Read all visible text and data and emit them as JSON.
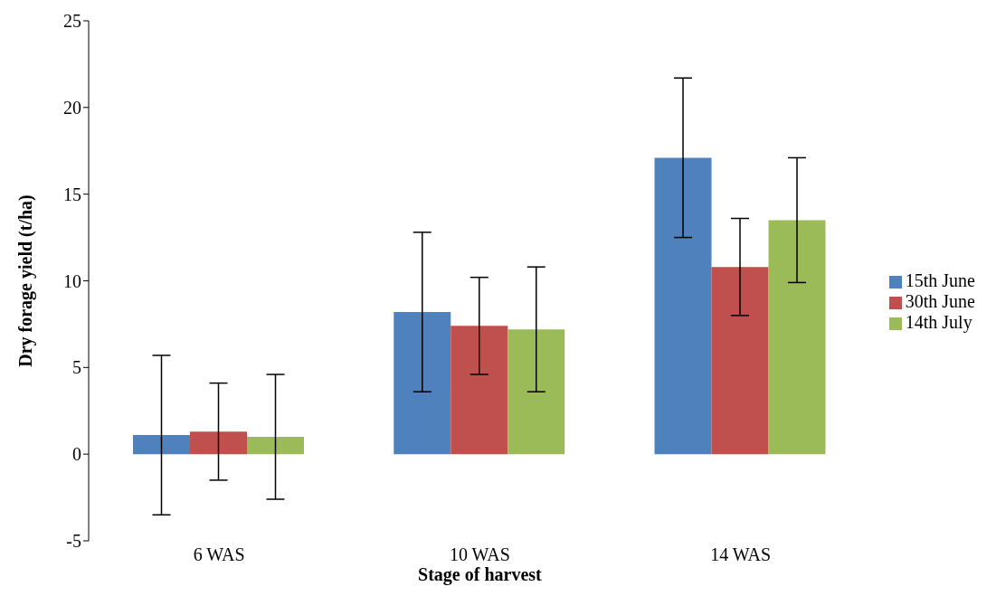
{
  "chart_data": {
    "type": "bar",
    "xlabel": "Stage of harvest",
    "ylabel": "Dry forage yield (t/ha)",
    "categories": [
      "6 WAS",
      "10 WAS",
      "14 WAS"
    ],
    "series": [
      {
        "name": "15th June",
        "color": "#4f81bd",
        "values": [
          1.1,
          8.2,
          17.1
        ],
        "errors": [
          4.6,
          4.6,
          4.6
        ]
      },
      {
        "name": "30th June",
        "color": "#c0504d",
        "values": [
          1.3,
          7.4,
          10.8
        ],
        "errors": [
          2.8,
          2.8,
          2.8
        ]
      },
      {
        "name": "14th July",
        "color": "#9bbb59",
        "values": [
          1.0,
          7.2,
          13.5
        ],
        "errors": [
          3.6,
          3.6,
          3.6
        ]
      }
    ],
    "ylim": [
      -5,
      25
    ],
    "yticks": [
      -5,
      0,
      5,
      10,
      15,
      20,
      25
    ],
    "grid": false,
    "legend": "right"
  }
}
